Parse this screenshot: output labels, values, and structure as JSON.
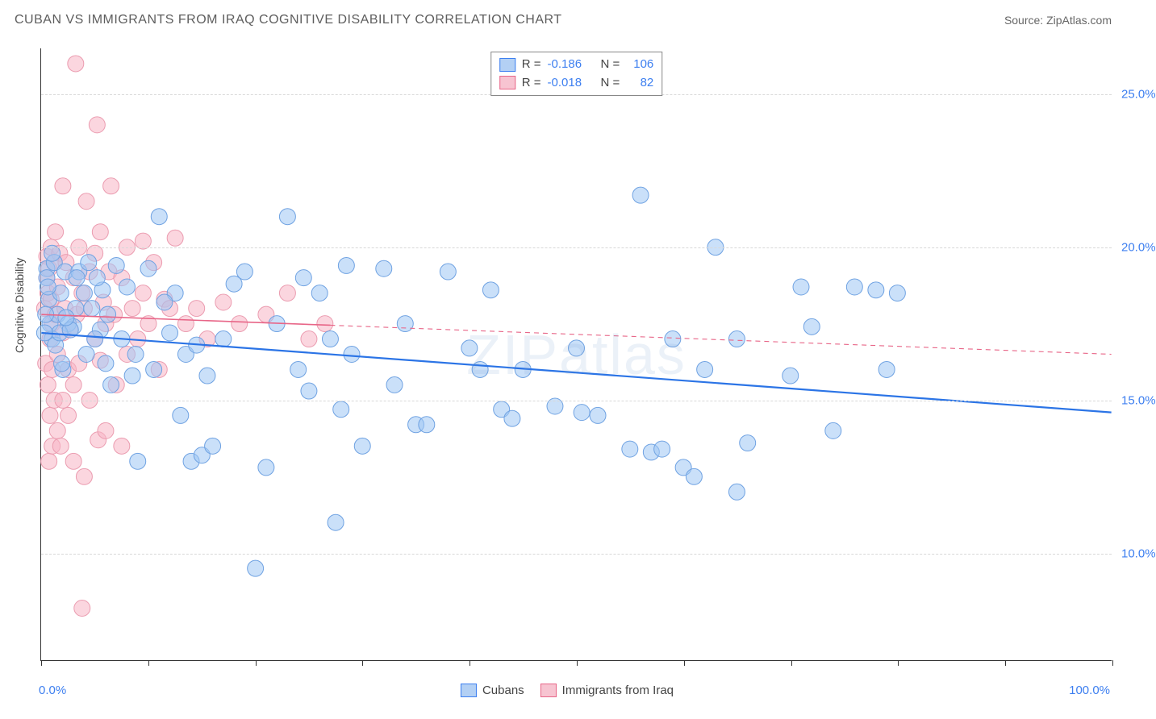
{
  "title": "CUBAN VS IMMIGRANTS FROM IRAQ COGNITIVE DISABILITY CORRELATION CHART",
  "source": "Source: ZipAtlas.com",
  "watermark": "ZIPatlas",
  "chart": {
    "type": "scatter",
    "ylabel": "Cognitive Disability",
    "xlim": [
      0,
      100
    ],
    "ylim": [
      6.5,
      26.5
    ],
    "yticks": [
      10.0,
      15.0,
      20.0,
      25.0
    ],
    "ytick_labels": [
      "10.0%",
      "15.0%",
      "20.0%",
      "25.0%"
    ],
    "xticks": [
      0,
      10,
      20,
      30,
      40,
      50,
      60,
      70,
      80,
      90,
      100
    ],
    "xlabel_min": "0.0%",
    "xlabel_max": "100.0%",
    "background_color": "#ffffff",
    "grid_color": "#d8d8d8",
    "axis_color": "#333333",
    "marker_radius": 10,
    "marker_stroke_width": 1,
    "series": [
      {
        "name": "Cubans",
        "fill_color": "rgba(158,198,244,0.55)",
        "stroke_color": "#6fa2e2",
        "legend_fill": "#b3d0f4",
        "legend_stroke": "#3d7ff0",
        "R": "-0.186",
        "N": "106",
        "trend": {
          "x1": 0,
          "y1": 17.2,
          "x2": 100,
          "y2": 14.6,
          "solid_until_x": 100,
          "color": "#2b74e6",
          "width": 2.2
        },
        "points": [
          [
            0.5,
            19.3
          ],
          [
            0.8,
            17.5
          ],
          [
            0.5,
            19.0
          ],
          [
            1.0,
            17.0
          ],
          [
            0.7,
            18.3
          ],
          [
            1.2,
            19.5
          ],
          [
            1.5,
            17.8
          ],
          [
            1.8,
            18.5
          ],
          [
            2.2,
            19.2
          ],
          [
            2.0,
            16.0
          ],
          [
            2.5,
            17.5
          ],
          [
            3.0,
            17.4
          ],
          [
            3.5,
            19.2
          ],
          [
            4.0,
            18.5
          ],
          [
            4.4,
            19.5
          ],
          [
            5.5,
            17.3
          ],
          [
            5.7,
            18.6
          ],
          [
            6.0,
            16.2
          ],
          [
            6.5,
            15.5
          ],
          [
            7.0,
            19.4
          ],
          [
            8.0,
            18.7
          ],
          [
            8.5,
            15.8
          ],
          [
            9.0,
            13.0
          ],
          [
            10.0,
            19.3
          ],
          [
            10.5,
            16.0
          ],
          [
            11.0,
            21.0
          ],
          [
            12.5,
            18.5
          ],
          [
            13.0,
            14.5
          ],
          [
            14.0,
            13.0
          ],
          [
            15.0,
            13.2
          ],
          [
            16.0,
            13.5
          ],
          [
            17.0,
            17.0
          ],
          [
            18.0,
            18.8
          ],
          [
            19.0,
            19.2
          ],
          [
            20.0,
            9.5
          ],
          [
            21.0,
            12.8
          ],
          [
            22.0,
            17.5
          ],
          [
            23.0,
            21.0
          ],
          [
            24.0,
            16.0
          ],
          [
            24.5,
            19.0
          ],
          [
            25.0,
            15.3
          ],
          [
            26.0,
            18.5
          ],
          [
            27.0,
            17.0
          ],
          [
            27.5,
            11.0
          ],
          [
            28.0,
            14.7
          ],
          [
            28.5,
            19.4
          ],
          [
            29.0,
            16.5
          ],
          [
            30.0,
            13.5
          ],
          [
            32.0,
            19.3
          ],
          [
            33.0,
            15.5
          ],
          [
            34.0,
            17.5
          ],
          [
            35.0,
            14.2
          ],
          [
            36.0,
            14.2
          ],
          [
            38.0,
            19.2
          ],
          [
            40.0,
            16.7
          ],
          [
            41.0,
            16.0
          ],
          [
            42.0,
            18.6
          ],
          [
            43.0,
            14.7
          ],
          [
            44.0,
            14.4
          ],
          [
            45.0,
            16.0
          ],
          [
            48.0,
            14.8
          ],
          [
            50.0,
            16.7
          ],
          [
            50.5,
            14.6
          ],
          [
            52.0,
            14.5
          ],
          [
            55.0,
            13.4
          ],
          [
            56.0,
            21.7
          ],
          [
            57.0,
            13.3
          ],
          [
            58.0,
            13.4
          ],
          [
            59.0,
            17.0
          ],
          [
            60.0,
            12.8
          ],
          [
            61.0,
            12.5
          ],
          [
            62.0,
            16.0
          ],
          [
            63.0,
            20.0
          ],
          [
            65.0,
            17.0
          ],
          [
            65.0,
            12.0
          ],
          [
            66.0,
            13.6
          ],
          [
            70.0,
            15.8
          ],
          [
            71.0,
            18.7
          ],
          [
            72.0,
            17.4
          ],
          [
            74.0,
            14.0
          ],
          [
            76.0,
            18.7
          ],
          [
            78.0,
            18.6
          ],
          [
            79.0,
            16.0
          ],
          [
            80.0,
            18.5
          ],
          [
            1.0,
            19.8
          ],
          [
            1.3,
            16.8
          ],
          [
            1.7,
            17.2
          ],
          [
            2.7,
            17.3
          ],
          [
            3.2,
            18.0
          ],
          [
            4.2,
            16.5
          ],
          [
            5.0,
            17.0
          ],
          [
            0.4,
            17.8
          ],
          [
            0.3,
            17.2
          ],
          [
            0.6,
            18.7
          ],
          [
            1.9,
            16.2
          ],
          [
            2.3,
            17.7
          ],
          [
            3.3,
            19.0
          ],
          [
            4.7,
            18.0
          ],
          [
            5.2,
            19.0
          ],
          [
            6.2,
            17.8
          ],
          [
            7.5,
            17.0
          ],
          [
            8.8,
            16.5
          ],
          [
            11.5,
            18.2
          ],
          [
            12.0,
            17.2
          ],
          [
            13.5,
            16.5
          ],
          [
            14.5,
            16.8
          ],
          [
            15.5,
            15.8
          ]
        ]
      },
      {
        "name": "Immigrants from Iraq",
        "fill_color": "rgba(248,180,196,0.55)",
        "stroke_color": "#eb9cb0",
        "legend_fill": "#f7c4d1",
        "legend_stroke": "#e86688",
        "R": "-0.018",
        "N": "82",
        "trend": {
          "x1": 0,
          "y1": 17.8,
          "x2": 100,
          "y2": 16.5,
          "solid_until_x": 27,
          "color": "#e86688",
          "width": 1.6
        },
        "points": [
          [
            0.3,
            18.0
          ],
          [
            0.4,
            16.2
          ],
          [
            0.5,
            19.7
          ],
          [
            0.5,
            19.0
          ],
          [
            0.6,
            18.5
          ],
          [
            0.6,
            15.5
          ],
          [
            0.7,
            19.3
          ],
          [
            0.7,
            13.0
          ],
          [
            0.8,
            17.0
          ],
          [
            0.8,
            14.5
          ],
          [
            0.9,
            20.0
          ],
          [
            0.9,
            18.3
          ],
          [
            1.0,
            17.5
          ],
          [
            1.0,
            16.0
          ],
          [
            1.0,
            13.5
          ],
          [
            1.2,
            19.5
          ],
          [
            1.2,
            15.0
          ],
          [
            1.3,
            17.8
          ],
          [
            1.3,
            20.5
          ],
          [
            1.5,
            18.7
          ],
          [
            1.5,
            16.5
          ],
          [
            1.5,
            14.0
          ],
          [
            1.7,
            19.8
          ],
          [
            1.8,
            13.5
          ],
          [
            2.0,
            22.0
          ],
          [
            2.0,
            17.2
          ],
          [
            2.0,
            15.0
          ],
          [
            2.2,
            18.0
          ],
          [
            2.3,
            19.5
          ],
          [
            2.5,
            16.0
          ],
          [
            2.5,
            14.5
          ],
          [
            2.7,
            17.3
          ],
          [
            3.0,
            19.0
          ],
          [
            3.0,
            15.5
          ],
          [
            3.0,
            13.0
          ],
          [
            3.2,
            26.0
          ],
          [
            3.3,
            17.8
          ],
          [
            3.5,
            20.0
          ],
          [
            3.5,
            16.2
          ],
          [
            3.8,
            18.5
          ],
          [
            4.0,
            18.0
          ],
          [
            4.0,
            12.5
          ],
          [
            4.2,
            21.5
          ],
          [
            4.5,
            19.2
          ],
          [
            4.5,
            15.0
          ],
          [
            3.8,
            8.2
          ],
          [
            5.0,
            17.0
          ],
          [
            5.0,
            19.8
          ],
          [
            5.2,
            24.0
          ],
          [
            5.3,
            13.7
          ],
          [
            5.5,
            20.5
          ],
          [
            5.5,
            16.3
          ],
          [
            5.8,
            18.2
          ],
          [
            6.0,
            17.5
          ],
          [
            6.0,
            14.0
          ],
          [
            6.3,
            19.2
          ],
          [
            6.5,
            22.0
          ],
          [
            6.8,
            17.8
          ],
          [
            7.0,
            15.5
          ],
          [
            7.5,
            19.0
          ],
          [
            7.5,
            13.5
          ],
          [
            8.0,
            20.0
          ],
          [
            8.0,
            16.5
          ],
          [
            8.5,
            18.0
          ],
          [
            9.0,
            17.0
          ],
          [
            9.5,
            18.5
          ],
          [
            9.5,
            20.2
          ],
          [
            10.0,
            17.5
          ],
          [
            10.5,
            19.5
          ],
          [
            11.0,
            16.0
          ],
          [
            11.5,
            18.3
          ],
          [
            12.0,
            18.0
          ],
          [
            12.5,
            20.3
          ],
          [
            13.5,
            17.5
          ],
          [
            14.5,
            18.0
          ],
          [
            15.5,
            17.0
          ],
          [
            17.0,
            18.2
          ],
          [
            18.5,
            17.5
          ],
          [
            21.0,
            17.8
          ],
          [
            23.0,
            18.5
          ],
          [
            25.0,
            17.0
          ],
          [
            26.5,
            17.5
          ]
        ]
      }
    ]
  },
  "legend_bottom": [
    {
      "label": "Cubans",
      "fill": "#b3d0f4",
      "stroke": "#3d7ff0"
    },
    {
      "label": "Immigrants from Iraq",
      "fill": "#f7c4d1",
      "stroke": "#e86688"
    }
  ]
}
